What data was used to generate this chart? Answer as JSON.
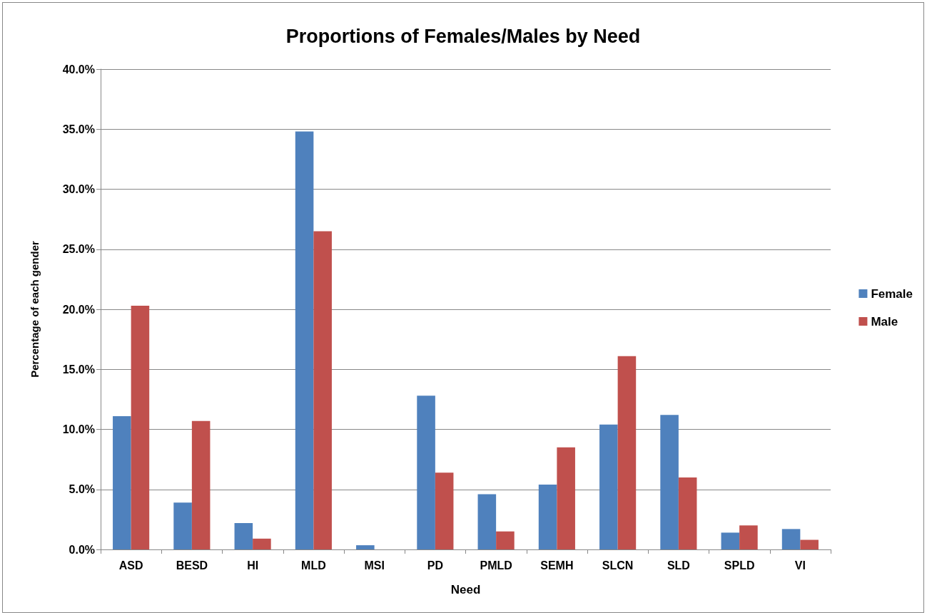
{
  "chart_data": {
    "type": "bar",
    "title": "Proportions of Females/Males by Need",
    "xlabel": "Need",
    "ylabel": "Percentage of each gender",
    "categories": [
      "ASD",
      "BESD",
      "HI",
      "MLD",
      "MSI",
      "PD",
      "PMLD",
      "SEMH",
      "SLCN",
      "SLD",
      "SPLD",
      "VI"
    ],
    "series": [
      {
        "name": "Female",
        "color": "#4f81bd",
        "values": [
          11.1,
          3.9,
          2.2,
          34.8,
          0.35,
          12.8,
          4.6,
          5.4,
          10.4,
          11.2,
          1.4,
          1.7
        ]
      },
      {
        "name": "Male",
        "color": "#c0504d",
        "values": [
          20.3,
          10.7,
          0.9,
          26.5,
          0,
          6.4,
          1.5,
          8.5,
          16.1,
          6.0,
          2.0,
          0.8
        ]
      }
    ],
    "ylim": [
      0,
      40
    ],
    "yticks": [
      {
        "value": 0,
        "label": "0.0%"
      },
      {
        "value": 5,
        "label": "5.0%"
      },
      {
        "value": 10,
        "label": "10.0%"
      },
      {
        "value": 15,
        "label": "15.0%"
      },
      {
        "value": 20,
        "label": "20.0%"
      },
      {
        "value": 25,
        "label": "25.0%"
      },
      {
        "value": 30,
        "label": "30.0%"
      },
      {
        "value": 35,
        "label": "35.0%"
      },
      {
        "value": 40,
        "label": "40.0%"
      }
    ],
    "grid": "y",
    "legend": "right"
  }
}
